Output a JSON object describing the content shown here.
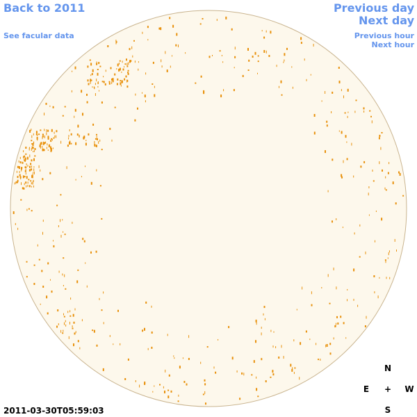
{
  "nav": {
    "back": "Back to 2011",
    "facular_data": "See facular data",
    "previous_day": "Previous day",
    "next_day": "Next day",
    "previous_hour": "Previous hour",
    "next_hour": "Next hour"
  },
  "timestamp": "2011-03-30T05:59:03",
  "compass": {
    "north": "N",
    "east": "E",
    "center": "+",
    "west": "W",
    "south": "S"
  }
}
